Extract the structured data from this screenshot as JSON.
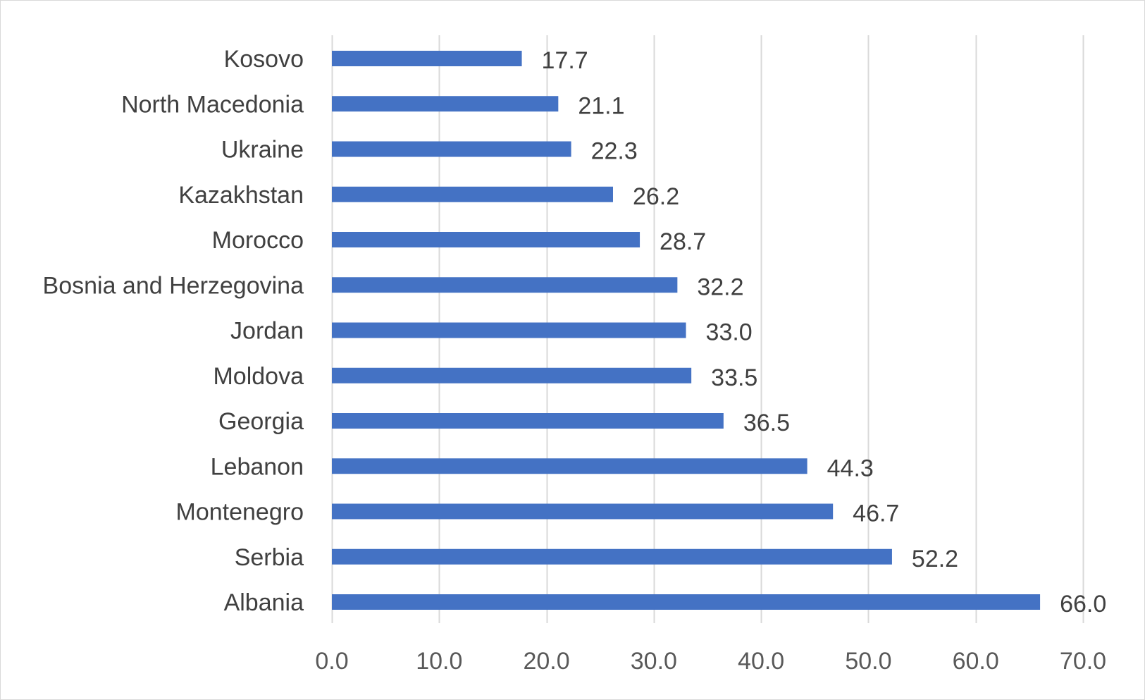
{
  "chart_data": {
    "type": "bar",
    "orientation": "horizontal",
    "categories": [
      "Kosovo",
      "North Macedonia",
      "Ukraine",
      "Kazakhstan",
      "Morocco",
      "Bosnia and Herzegovina",
      "Jordan",
      "Moldova",
      "Georgia",
      "Lebanon",
      "Montenegro",
      "Serbia",
      "Albania"
    ],
    "values": [
      17.7,
      21.1,
      22.3,
      26.2,
      28.7,
      32.2,
      33.0,
      33.5,
      36.5,
      44.3,
      46.7,
      52.2,
      66.0
    ],
    "value_labels": [
      "17.7",
      "21.1",
      "22.3",
      "26.2",
      "28.7",
      "32.2",
      "33.0",
      "33.5",
      "36.5",
      "44.3",
      "46.7",
      "52.2",
      "66.0"
    ],
    "xlim": [
      0,
      70
    ],
    "xticks": [
      0,
      10,
      20,
      30,
      40,
      50,
      60,
      70
    ],
    "xtick_labels": [
      "0.0",
      "10.0",
      "20.0",
      "30.0",
      "40.0",
      "50.0",
      "60.0",
      "70.0"
    ],
    "grid": true,
    "legend": "none",
    "colors": {
      "bar": "#4472c4",
      "grid": "#d9d9d9",
      "label_text": "#404040",
      "tick_text": "#595959"
    }
  }
}
